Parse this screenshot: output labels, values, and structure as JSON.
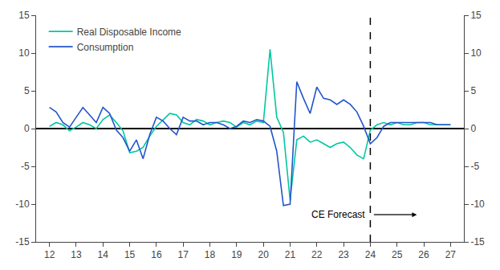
{
  "chart_data": {
    "type": "line",
    "x": [
      12.0,
      12.25,
      12.5,
      12.75,
      13.0,
      13.25,
      13.5,
      13.75,
      14.0,
      14.25,
      14.5,
      14.75,
      15.0,
      15.25,
      15.5,
      15.75,
      16.0,
      16.25,
      16.5,
      16.75,
      17.0,
      17.25,
      17.5,
      17.75,
      18.0,
      18.25,
      18.5,
      18.75,
      19.0,
      19.25,
      19.5,
      19.75,
      20.0,
      20.25,
      20.5,
      20.75,
      21.0,
      21.25,
      21.5,
      21.75,
      22.0,
      22.25,
      22.5,
      22.75,
      23.0,
      23.25,
      23.5,
      23.75,
      24.0,
      24.25,
      24.5,
      24.75,
      25.0,
      25.25,
      25.5,
      25.75,
      26.0,
      26.25,
      26.5,
      26.75,
      27.0
    ],
    "series": [
      {
        "name": "Real Disposable Income",
        "color": "#00C8A0",
        "values": [
          0.3,
          0.8,
          0.5,
          -0.3,
          0.2,
          0.8,
          0.5,
          0.0,
          1.2,
          1.8,
          0.8,
          -0.3,
          -3.2,
          -3.0,
          -2.5,
          -1.0,
          0.3,
          1.2,
          2.0,
          1.8,
          0.8,
          0.5,
          1.2,
          1.0,
          0.5,
          0.8,
          1.0,
          0.8,
          0.2,
          0.8,
          0.5,
          1.0,
          0.8,
          10.5,
          1.5,
          -0.5,
          -9.5,
          -1.5,
          -1.0,
          -1.8,
          -1.5,
          -2.0,
          -2.5,
          -2.0,
          -1.8,
          -2.5,
          -3.5,
          -4.0,
          -0.2,
          0.5,
          0.8,
          0.5,
          0.8,
          0.5,
          0.5,
          0.8,
          0.8,
          0.5,
          0.5,
          0.5,
          0.5
        ]
      },
      {
        "name": "Consumption",
        "color": "#2255CC",
        "values": [
          2.8,
          2.2,
          0.8,
          0.2,
          1.5,
          2.8,
          1.8,
          0.8,
          2.8,
          2.0,
          -0.2,
          -1.2,
          -3.0,
          -1.5,
          -4.0,
          -0.8,
          1.5,
          1.0,
          0.0,
          -0.8,
          1.5,
          1.0,
          1.0,
          0.5,
          0.8,
          0.8,
          0.5,
          0.0,
          0.3,
          1.0,
          0.8,
          1.2,
          1.0,
          0.3,
          -3.0,
          -10.2,
          -10.0,
          6.2,
          4.0,
          2.0,
          5.5,
          4.0,
          3.8,
          3.2,
          3.8,
          3.2,
          2.2,
          0.3,
          -2.0,
          -1.2,
          0.3,
          0.8,
          0.8,
          0.8,
          0.8,
          0.8,
          0.8,
          0.8,
          0.5,
          0.5,
          0.5
        ]
      }
    ],
    "xlim": [
      11.5,
      27.5
    ],
    "xticks": [
      12,
      13,
      14,
      15,
      16,
      17,
      18,
      19,
      20,
      21,
      22,
      23,
      24,
      25,
      26,
      27
    ],
    "ylim": [
      -15,
      15
    ],
    "yticks": [
      -15,
      -10,
      -5,
      0,
      5,
      10,
      15
    ],
    "y2lim": [
      -15,
      15
    ],
    "y2ticks": [
      -15,
      -10,
      -5,
      0,
      5,
      10,
      15
    ],
    "annotations": [
      {
        "text": "CE Forecast",
        "x": 24
      }
    ],
    "legend": "upper left",
    "grid": false
  }
}
